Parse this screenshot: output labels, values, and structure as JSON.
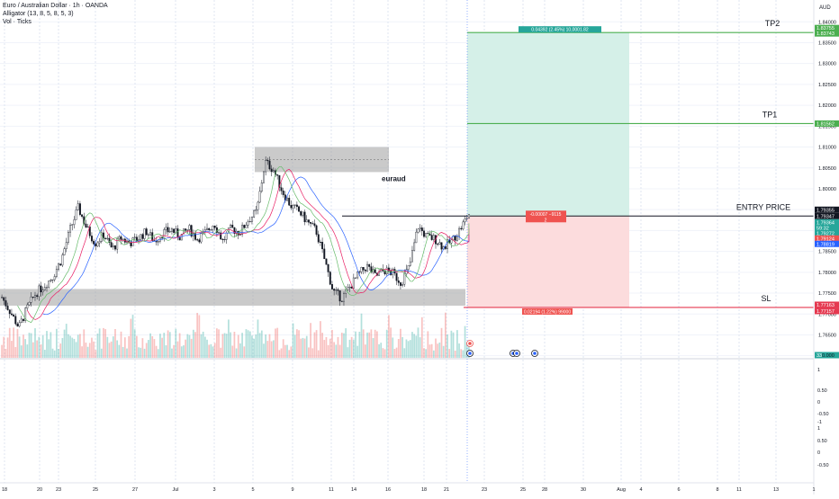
{
  "header": {
    "symbol_line": "Euro / Australian Dollar · 1h · OANDA",
    "indicator_line": "Alligator (13, 8, 5, 8, 5, 3)",
    "volume_line": "Vol · Ticks"
  },
  "currency": "AUD",
  "colors": {
    "up": "#26a69a",
    "down": "#ef5350",
    "profit_zone": "#d5f0e8",
    "loss_zone": "#fcdcdd",
    "tp_line": "#4caf50",
    "sl_line": "#e53950",
    "zone_box": "#9e9e9e"
  },
  "chart_data": {
    "type": "candlestick",
    "title": "Euro / Australian Dollar · 1h · OANDA",
    "price_axis": {
      "ylim": [
        1.7595,
        1.8435
      ],
      "ticks": [
        1.84,
        1.835,
        1.83,
        1.825,
        1.82,
        1.815,
        1.81,
        1.805,
        1.8,
        1.795,
        1.79,
        1.785,
        1.78,
        1.775,
        1.77,
        1.765,
        1.76
      ]
    },
    "price_tick_labels": [
      "1.84000",
      "1.83500",
      "1.83000",
      "1.82500",
      "1.82000",
      "1.81500",
      "1.81000",
      "1.80500",
      "1.80000",
      "1.79500",
      "1.79000",
      "1.78500",
      "1.78000",
      "1.77500",
      "1.77000",
      "1.76500",
      "1.76000"
    ],
    "date_labels": [
      "18",
      "20",
      "23",
      "25",
      "27",
      "Jul",
      "3",
      "5",
      "9",
      "11",
      "14",
      "16",
      "18",
      "21",
      "23",
      "25",
      "28",
      "30",
      "Aug",
      "4",
      "6",
      "8",
      "11",
      "13",
      "1"
    ],
    "indicator_axis_labels": [
      "1",
      "0.50",
      "0",
      "-0.50",
      "-1",
      "1",
      "0.50",
      "0",
      "-0.50"
    ],
    "price_path": [
      1.774,
      1.7705,
      1.7668,
      1.7715,
      1.775,
      1.7768,
      1.779,
      1.783,
      1.79,
      1.7955,
      1.7905,
      1.787,
      1.789,
      1.7855,
      1.7882,
      1.787,
      1.788,
      1.7898,
      1.7875,
      1.7895,
      1.7902,
      1.7885,
      1.7905,
      1.788,
      1.7895,
      1.7918,
      1.7875,
      1.7905,
      1.7895,
      1.7925,
      1.7945,
      1.8065,
      1.8045,
      1.7995,
      1.796,
      1.7945,
      1.792,
      1.79,
      1.783,
      1.7755,
      1.7738,
      1.7765,
      1.7795,
      1.7815,
      1.779,
      1.7805,
      1.7798,
      1.7775,
      1.7815,
      1.791,
      1.7885,
      1.788,
      1.786,
      1.7875,
      1.7905,
      1.794
    ],
    "zones": [
      {
        "label": "euraud",
        "price_top": 1.81,
        "price_bottom": 1.804
      },
      {
        "price_top": 1.776,
        "price_bottom": 1.772
      }
    ],
    "position": {
      "tp2": {
        "label": "TP2",
        "price": 1.83743,
        "price_tag": "1.83743",
        "upper_tag": "1.83755",
        "info": "0.04392 (2.45%) 10,0001.82"
      },
      "tp1": {
        "label": "TP1",
        "price": 1.81562,
        "price_tag": "1.81562"
      },
      "entry": {
        "label": "ENTRY PRICE",
        "price": 1.79347,
        "price_tag": "1.79347",
        "upper_tag": "1.79355",
        "info": "-0.00007 −9115",
        "info_sub": "2"
      },
      "sl": {
        "label": "SL",
        "price": 1.77157,
        "price_tag": "1.77157",
        "upper_tag": "1.77163",
        "info": "0.02194 (1.22%) 99000"
      }
    },
    "price_tags": [
      {
        "text": "1.79364",
        "kind": "up"
      },
      {
        "text": "59:32",
        "kind": "up"
      },
      {
        "text": "1.79272",
        "kind": "up"
      },
      {
        "text": "1.79124",
        "kind": "down"
      },
      {
        "text": "1.78819",
        "kind": "blue"
      }
    ],
    "volume_tag": "33",
    "volume_axis_label": "0.000"
  }
}
